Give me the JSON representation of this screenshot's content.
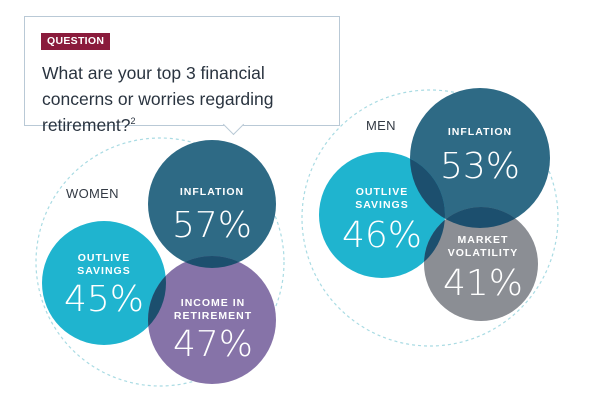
{
  "question": {
    "badge": "QUESTION",
    "text": "What are your top 3 financial concerns or worries regarding retirement?",
    "footnote": "2"
  },
  "groups": [
    {
      "label": "WOMEN",
      "items": [
        {
          "label": "INFLATION",
          "value": "57%"
        },
        {
          "label": "OUTLIVE SAVINGS",
          "value": "45%"
        },
        {
          "label": "INCOME IN RETIREMENT",
          "value": "47%"
        }
      ]
    },
    {
      "label": "MEN",
      "items": [
        {
          "label": "INFLATION",
          "value": "53%"
        },
        {
          "label": "OUTLIVE SAVINGS",
          "value": "46%"
        },
        {
          "label": "MARKET VOLATILITY",
          "value": "41%"
        }
      ]
    }
  ],
  "colors": {
    "inflation": "#2e6a85",
    "outlive": "#1fb4cf",
    "income": "#8673a8",
    "market": "#8b8e94",
    "overlap": "#1c4f6e",
    "dashed_ring": "#a9dbe3",
    "badge": "#8a1b3c"
  }
}
